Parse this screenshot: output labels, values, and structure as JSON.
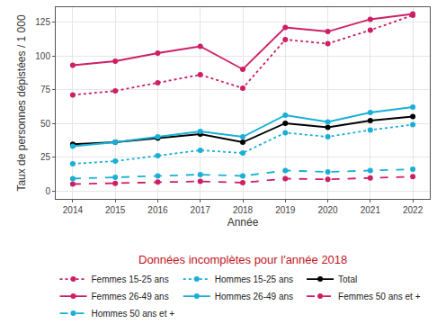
{
  "chart_data": {
    "type": "line",
    "x_label": "Année",
    "y_label": "Taux de personnes dépistées / 1 000",
    "annotations": [
      "Données incomplètes pour l'année 2018"
    ],
    "x": [
      2014,
      2015,
      2016,
      2017,
      2018,
      2019,
      2020,
      2021,
      2022
    ],
    "xlim": [
      2013.6,
      2022.4
    ],
    "xticks": [
      2014,
      2015,
      2016,
      2017,
      2018,
      2019,
      2020,
      2021,
      2022
    ],
    "ylim": [
      -6,
      136
    ],
    "yticks": [
      0,
      25,
      50,
      75,
      100,
      125
    ],
    "grid": true,
    "legend": "bottom",
    "marker": "circle",
    "series": [
      {
        "name": "Femmes 15-25 ans",
        "color": "#cc1f66",
        "line_style": "dotted",
        "values": [
          71,
          74,
          80,
          86,
          76,
          112,
          109,
          119,
          130
        ]
      },
      {
        "name": "Hommes 15-25 ans",
        "color": "#1aafd6",
        "line_style": "dotted",
        "values": [
          20,
          22,
          26,
          30,
          28,
          43,
          40,
          45,
          49
        ]
      },
      {
        "name": "Total",
        "color": "#000000",
        "line_style": "solid",
        "values": [
          34.5,
          36,
          39,
          42,
          36,
          50,
          47,
          52,
          55
        ]
      },
      {
        "name": "Femmes 26-49 ans",
        "color": "#cc1f66",
        "line_style": "solid",
        "values": [
          93,
          96,
          102,
          107,
          90,
          121,
          118,
          127,
          131
        ]
      },
      {
        "name": "Hommes 26-49 ans",
        "color": "#1aafd6",
        "line_style": "solid",
        "values": [
          33,
          36,
          40,
          44,
          40,
          56,
          51,
          58,
          62
        ]
      },
      {
        "name": "Femmes 50 ans et +",
        "color": "#cc1f66",
        "line_style": "dashed",
        "values": [
          5,
          5.5,
          6.5,
          7,
          6,
          9,
          8.5,
          9.5,
          10.5
        ]
      },
      {
        "name": "Hommes 50 ans et +",
        "color": "#1aafd6",
        "line_style": "dashed",
        "values": [
          9,
          10,
          11,
          12,
          11,
          15,
          14,
          15,
          16
        ]
      }
    ]
  }
}
